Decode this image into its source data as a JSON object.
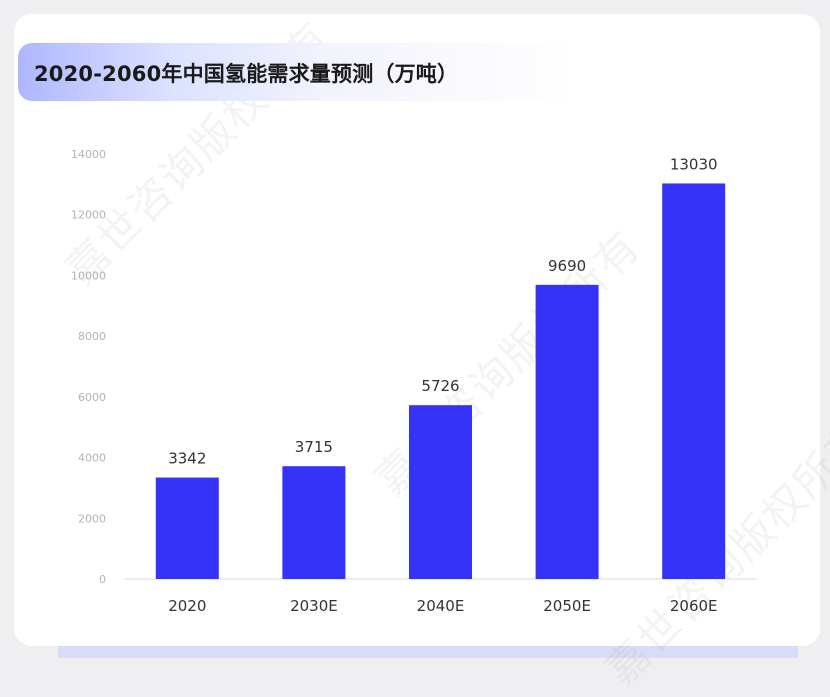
{
  "title": "2020-2060年中国氢能需求量预测（万吨）",
  "watermark": "嘉世咨询版权所有",
  "colors": {
    "bar": "#3533f7",
    "background": "#efeff2",
    "card": "#ffffff"
  },
  "chart_data": {
    "type": "bar",
    "title": "2020-2060年中国氢能需求量预测（万吨）",
    "categories": [
      "2020",
      "2030E",
      "2040E",
      "2050E",
      "2060E"
    ],
    "values": [
      3342,
      3715,
      5726,
      9690,
      13030
    ],
    "data_labels": [
      "3342",
      "3715",
      "5726",
      "9690",
      "13030"
    ],
    "yticks": [
      "0",
      "2000",
      "4000",
      "6000",
      "8000",
      "10000",
      "12000",
      "14000"
    ],
    "ylim": [
      0,
      14000
    ],
    "xlabel": "",
    "ylabel": "",
    "grid": false,
    "legend": "none"
  }
}
